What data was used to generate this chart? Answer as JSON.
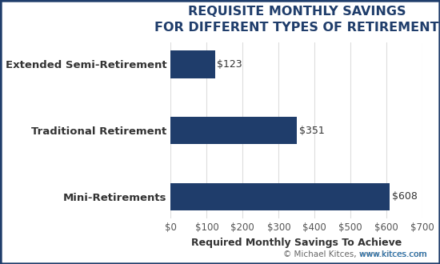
{
  "categories": [
    "Mini-Retirements",
    "Traditional Retirement",
    "Extended Semi-Retirement"
  ],
  "values": [
    608,
    351,
    123
  ],
  "bar_color": "#1F3D6B",
  "title_line1": "REQUISITE MONTHLY SAVINGS",
  "title_line2": "FOR DIFFERENT TYPES OF RETIREMENT",
  "xlabel": "Required Monthly Savings To Achieve",
  "xlim": [
    0,
    700
  ],
  "xticks": [
    0,
    100,
    200,
    300,
    400,
    500,
    600,
    700
  ],
  "xtick_labels": [
    "$0",
    "$100",
    "$200",
    "$300",
    "$400",
    "$500",
    "$600",
    "$700"
  ],
  "bar_labels": [
    "$608",
    "$351",
    "$123"
  ],
  "background_color": "#FFFFFF",
  "plot_bg_color": "#FFFFFF",
  "border_color": "#1F3D6B",
  "title_color": "#1F3D6B",
  "ylabel_color": "#333333",
  "tick_color": "#555555",
  "xlabel_color": "#333333",
  "bar_label_color": "#333333",
  "watermark_color": "#666666",
  "watermark_url_color": "#2277BB",
  "watermark": "© Michael Kitces, ",
  "watermark_url": "www.kitces.com",
  "title_fontsize": 11.5,
  "ylabel_fontsize": 9.5,
  "tick_fontsize": 8.5,
  "xlabel_fontsize": 9,
  "bar_label_fontsize": 9,
  "watermark_fontsize": 7.5,
  "bar_height": 0.42
}
